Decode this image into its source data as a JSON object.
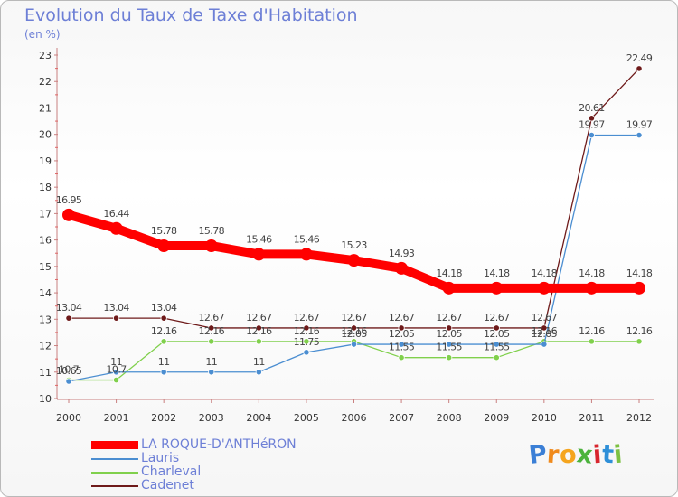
{
  "chart_data": {
    "type": "line",
    "title": "Evolution du Taux de Taxe d'Habitation",
    "subtitle": "(en %)",
    "x": [
      "2000",
      "2001",
      "2002",
      "2003",
      "2004",
      "2005",
      "2006",
      "2007",
      "2008",
      "2009",
      "2010",
      "2011",
      "2012"
    ],
    "ylim": [
      10,
      23
    ],
    "yticks": [
      10,
      11,
      12,
      13,
      14,
      15,
      16,
      17,
      18,
      19,
      20,
      21,
      22,
      23
    ],
    "grid": false,
    "legend_position": "bottom-left",
    "series": [
      {
        "name": "LA ROQUE-D'ANTHéRON",
        "color": "#ff0000",
        "values": [
          16.95,
          16.44,
          15.78,
          15.78,
          15.46,
          15.46,
          15.23,
          14.93,
          14.18,
          14.18,
          14.18,
          14.18,
          14.18
        ],
        "labels": [
          "16.95",
          "16.44",
          "15.78",
          "15.78",
          "15.46",
          "15.46",
          "15.23",
          "14.93",
          "14.18",
          "14.18",
          "14.18",
          "14.18",
          "14.18"
        ]
      },
      {
        "name": "Lauris",
        "color": "#4b8ed1",
        "values": [
          10.65,
          11,
          11,
          11,
          11,
          11.75,
          12.05,
          12.05,
          12.05,
          12.05,
          12.05,
          19.97,
          19.97
        ],
        "labels": [
          "10.65",
          "11",
          "11",
          "11",
          "11",
          "11.75",
          "12.05",
          "12.05",
          "12.05",
          "12.05",
          "12.05",
          "19.97",
          "19.97"
        ]
      },
      {
        "name": "Charleval",
        "color": "#80d04c",
        "values": [
          10.7,
          10.7,
          12.16,
          12.16,
          12.16,
          12.16,
          12.16,
          11.55,
          11.55,
          11.55,
          12.16,
          12.16,
          12.16
        ],
        "labels": [
          "10.7",
          "10.7",
          "12.16",
          "12.16",
          "12.16",
          "12.16",
          "12.16",
          "11.55",
          "11.55",
          "11.55",
          "12.16",
          "12.16",
          "12.16"
        ]
      },
      {
        "name": "Cadenet",
        "color": "#6e1a1a",
        "values": [
          13.04,
          13.04,
          13.04,
          12.67,
          12.67,
          12.67,
          12.67,
          12.67,
          12.67,
          12.67,
          12.67,
          20.61,
          22.49
        ],
        "labels": [
          "13.04",
          "13.04",
          "13.04",
          "12.67",
          "12.67",
          "12.67",
          "12.67",
          "12.67",
          "12.67",
          "12.67",
          "12.67",
          "20.61",
          "22.49"
        ]
      }
    ]
  },
  "logo": {
    "text": "Proxiti",
    "letters": [
      "P",
      "r",
      "o",
      "x",
      "i",
      "t",
      "i"
    ],
    "colors": [
      "#3b7fd6",
      "#f08a1c",
      "#f5a51e",
      "#4bb33c",
      "#d8262e",
      "#2e8fd8",
      "#7cc142"
    ]
  }
}
